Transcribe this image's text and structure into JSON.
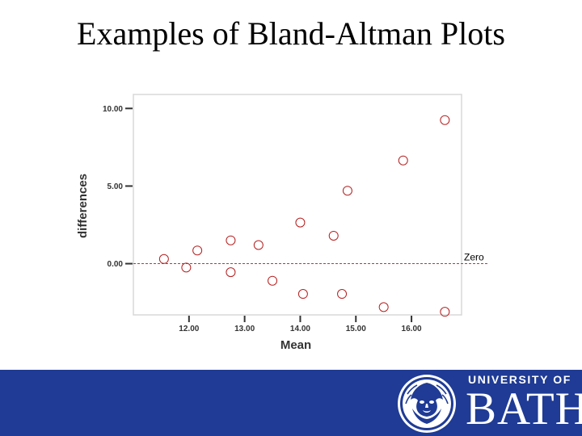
{
  "slide": {
    "title": "Examples of Bland-Altman Plots"
  },
  "chart_data": {
    "type": "scatter",
    "xlabel": "Mean",
    "ylabel": "differences",
    "xlim": [
      11.0,
      16.9
    ],
    "ylim": [
      -3.3,
      10.9
    ],
    "x_ticks": [
      "12.00",
      "13.00",
      "14.00",
      "15.00",
      "16.00"
    ],
    "x_tick_values": [
      12,
      13,
      14,
      15,
      16
    ],
    "y_ticks": [
      "0.00",
      "5.00",
      "10.00"
    ],
    "y_tick_values": [
      0,
      5,
      10
    ],
    "reference_line": {
      "y": 0,
      "label": "Zero",
      "color": "#c0392b"
    },
    "marker_color": "#b52020",
    "points": [
      {
        "x": 11.55,
        "y": 0.3
      },
      {
        "x": 11.95,
        "y": -0.25
      },
      {
        "x": 12.15,
        "y": 0.85
      },
      {
        "x": 12.75,
        "y": 1.5
      },
      {
        "x": 12.75,
        "y": -0.55
      },
      {
        "x": 13.25,
        "y": 1.2
      },
      {
        "x": 13.5,
        "y": -1.1
      },
      {
        "x": 14.0,
        "y": 2.65
      },
      {
        "x": 14.05,
        "y": -1.95
      },
      {
        "x": 14.6,
        "y": 1.8
      },
      {
        "x": 14.75,
        "y": -1.95
      },
      {
        "x": 14.85,
        "y": 4.7
      },
      {
        "x": 15.5,
        "y": -2.8
      },
      {
        "x": 15.85,
        "y": 6.65
      },
      {
        "x": 16.6,
        "y": 9.25
      },
      {
        "x": 16.6,
        "y": -3.1
      }
    ]
  },
  "footer": {
    "university_label": "UNIVERSITY OF",
    "university_name": "BATH",
    "background_color": "#1f3b95"
  }
}
